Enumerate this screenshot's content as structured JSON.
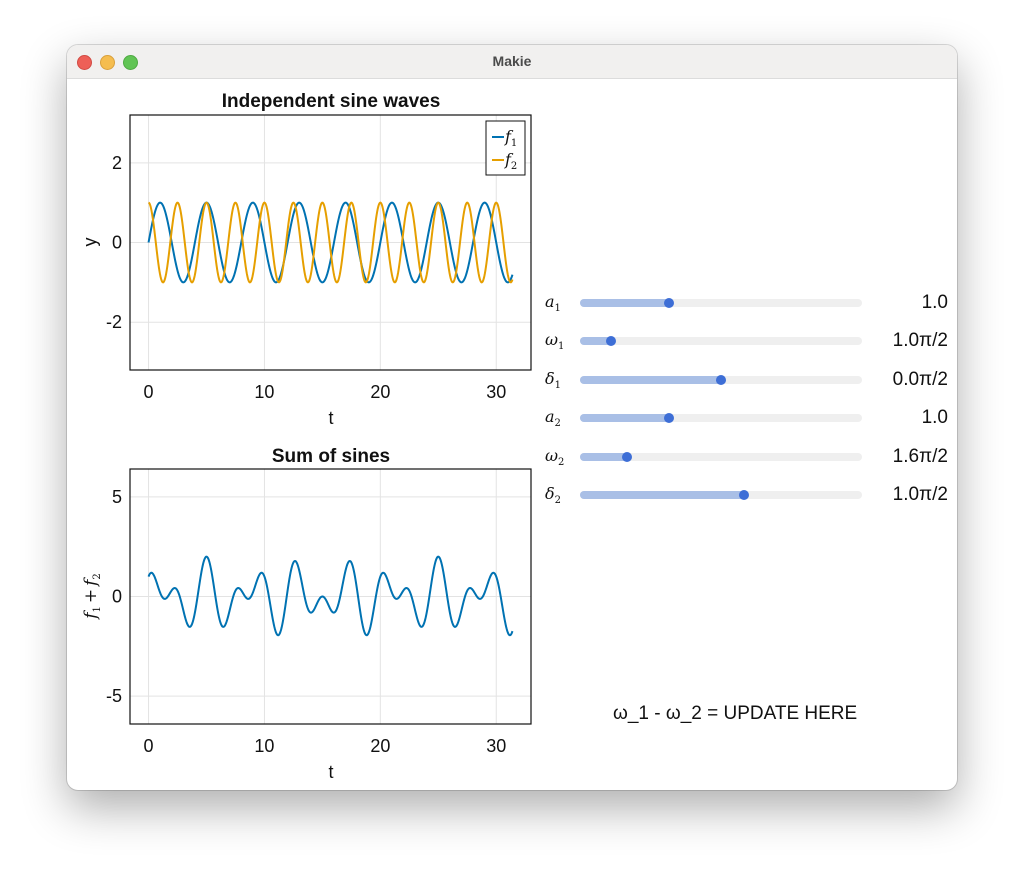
{
  "window": {
    "title": "Makie"
  },
  "plot1": {
    "title": "Independent sine waves",
    "xlabel": "t",
    "ylabel": "y",
    "legend": [
      {
        "label": "f",
        "sub": "1",
        "color": "#0072b2"
      },
      {
        "label": "f",
        "sub": "2",
        "color": "#e69f00"
      }
    ]
  },
  "plot2": {
    "title": "Sum of sines",
    "xlabel": "t",
    "ylabel_parts": {
      "a": "f",
      "a_sub": "1",
      "op": "+",
      "b": "f",
      "b_sub": "2"
    }
  },
  "sliders": [
    {
      "name": "a",
      "sub": "1",
      "value_label": "1.0",
      "fraction": 0.316
    },
    {
      "name": "ω",
      "sub": "1",
      "value_label": "1.0π/2",
      "fraction": 0.111
    },
    {
      "name": "δ",
      "sub": "1",
      "value_label": "0.0π/2",
      "fraction": 0.5
    },
    {
      "name": "a",
      "sub": "2",
      "value_label": "1.0",
      "fraction": 0.316
    },
    {
      "name": "ω",
      "sub": "2",
      "value_label": "1.6π/2",
      "fraction": 0.167
    },
    {
      "name": "δ",
      "sub": "2",
      "value_label": "1.0π/2",
      "fraction": 0.583
    }
  ],
  "info_text": "ω_1 - ω_2 = UPDATE HERE",
  "chart_data": [
    {
      "type": "line",
      "title": "Independent sine waves",
      "xlabel": "t",
      "ylabel": "y",
      "xlim": [
        -1.6,
        33.0
      ],
      "ylim": [
        -3.2,
        3.2
      ],
      "xticks": [
        0,
        10,
        20,
        30
      ],
      "xtick_labels": [
        "0",
        "10",
        "20",
        "30"
      ],
      "yticks": [
        -2,
        0,
        2
      ],
      "ytick_labels": [
        "-2",
        "0",
        "2"
      ],
      "grid": true,
      "legend_position": "top-right",
      "x_range": [
        0,
        31.4
      ],
      "series": [
        {
          "name": "f₁",
          "function": "1.0*sin(1.0*(π/2)*t + 0.0*(π/2))",
          "amplitude": 1.0,
          "omega": 1.5708,
          "delta": 0.0,
          "color": "#0072b2"
        },
        {
          "name": "f₂",
          "function": "1.0*sin(1.6*(π/2)*t + 1.0*(π/2))",
          "amplitude": 1.0,
          "omega": 2.5133,
          "delta": 1.5708,
          "color": "#e69f00"
        }
      ]
    },
    {
      "type": "line",
      "title": "Sum of sines",
      "xlabel": "t",
      "ylabel": "f₁ + f₂",
      "xlim": [
        -1.6,
        33.0
      ],
      "ylim": [
        -6.4,
        6.4
      ],
      "xticks": [
        0,
        10,
        20,
        30
      ],
      "xtick_labels": [
        "0",
        "10",
        "20",
        "30"
      ],
      "yticks": [
        -5,
        0,
        5
      ],
      "ytick_labels": [
        "-5",
        "0",
        "5"
      ],
      "grid": true,
      "x_range": [
        0,
        31.4
      ],
      "series": [
        {
          "function": "f₁(t) + f₂(t)",
          "color": "#0072b2"
        }
      ]
    }
  ]
}
